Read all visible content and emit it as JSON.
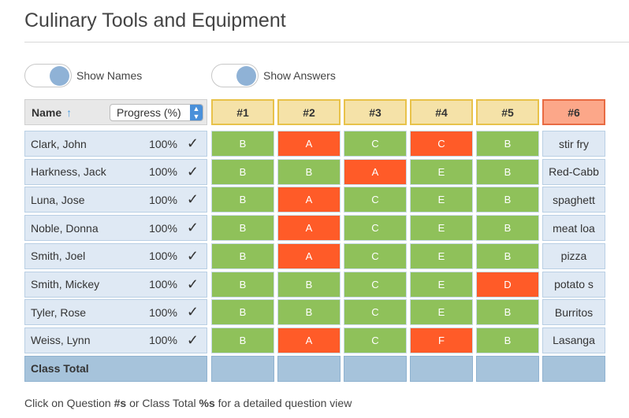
{
  "page_title": "Culinary Tools and Equipment",
  "toggles": [
    {
      "label": "Show Names",
      "on": true
    },
    {
      "label": "Show Answers",
      "on": true
    }
  ],
  "table": {
    "name_header": "Name",
    "progress_select": "Progress (%)",
    "questions": [
      "#1",
      "#2",
      "#3",
      "#4",
      "#5",
      "#6"
    ],
    "rows": [
      {
        "name": "Clark, John",
        "progress": "100%",
        "answers": [
          [
            "B",
            "good"
          ],
          [
            "A",
            "bad"
          ],
          [
            "C",
            "good"
          ],
          [
            "C",
            "bad"
          ],
          [
            "B",
            "good"
          ]
        ],
        "text": "stir fry"
      },
      {
        "name": "Harkness, Jack",
        "progress": "100%",
        "answers": [
          [
            "B",
            "good"
          ],
          [
            "B",
            "good"
          ],
          [
            "A",
            "bad"
          ],
          [
            "E",
            "good"
          ],
          [
            "B",
            "good"
          ]
        ],
        "text": "Red-Cabb"
      },
      {
        "name": "Luna, Jose",
        "progress": "100%",
        "answers": [
          [
            "B",
            "good"
          ],
          [
            "A",
            "bad"
          ],
          [
            "C",
            "good"
          ],
          [
            "E",
            "good"
          ],
          [
            "B",
            "good"
          ]
        ],
        "text": "spaghett"
      },
      {
        "name": "Noble, Donna",
        "progress": "100%",
        "answers": [
          [
            "B",
            "good"
          ],
          [
            "A",
            "bad"
          ],
          [
            "C",
            "good"
          ],
          [
            "E",
            "good"
          ],
          [
            "B",
            "good"
          ]
        ],
        "text": "meat loa"
      },
      {
        "name": "Smith, Joel",
        "progress": "100%",
        "answers": [
          [
            "B",
            "good"
          ],
          [
            "A",
            "bad"
          ],
          [
            "C",
            "good"
          ],
          [
            "E",
            "good"
          ],
          [
            "B",
            "good"
          ]
        ],
        "text": "pizza"
      },
      {
        "name": "Smith, Mickey",
        "progress": "100%",
        "answers": [
          [
            "B",
            "good"
          ],
          [
            "B",
            "good"
          ],
          [
            "C",
            "good"
          ],
          [
            "E",
            "good"
          ],
          [
            "D",
            "bad"
          ]
        ],
        "text": "potato s"
      },
      {
        "name": "Tyler, Rose",
        "progress": "100%",
        "answers": [
          [
            "B",
            "good"
          ],
          [
            "B",
            "good"
          ],
          [
            "C",
            "good"
          ],
          [
            "E",
            "good"
          ],
          [
            "B",
            "good"
          ]
        ],
        "text": "Burritos"
      },
      {
        "name": "Weiss, Lynn",
        "progress": "100%",
        "answers": [
          [
            "B",
            "good"
          ],
          [
            "A",
            "bad"
          ],
          [
            "C",
            "good"
          ],
          [
            "F",
            "bad"
          ],
          [
            "B",
            "good"
          ]
        ],
        "text": "Lasanga"
      }
    ],
    "class_total_label": "Class Total"
  },
  "footer": {
    "part1": "Click on Question ",
    "bold1": "#s",
    "part2": " or Class Total ",
    "bold2": "%s",
    "part3": " for a detailed question view"
  },
  "colors": {
    "correct": "#8fc15a",
    "incorrect": "#ff5b28",
    "header": "#f5e2a8",
    "selected_header": "#fca789"
  }
}
